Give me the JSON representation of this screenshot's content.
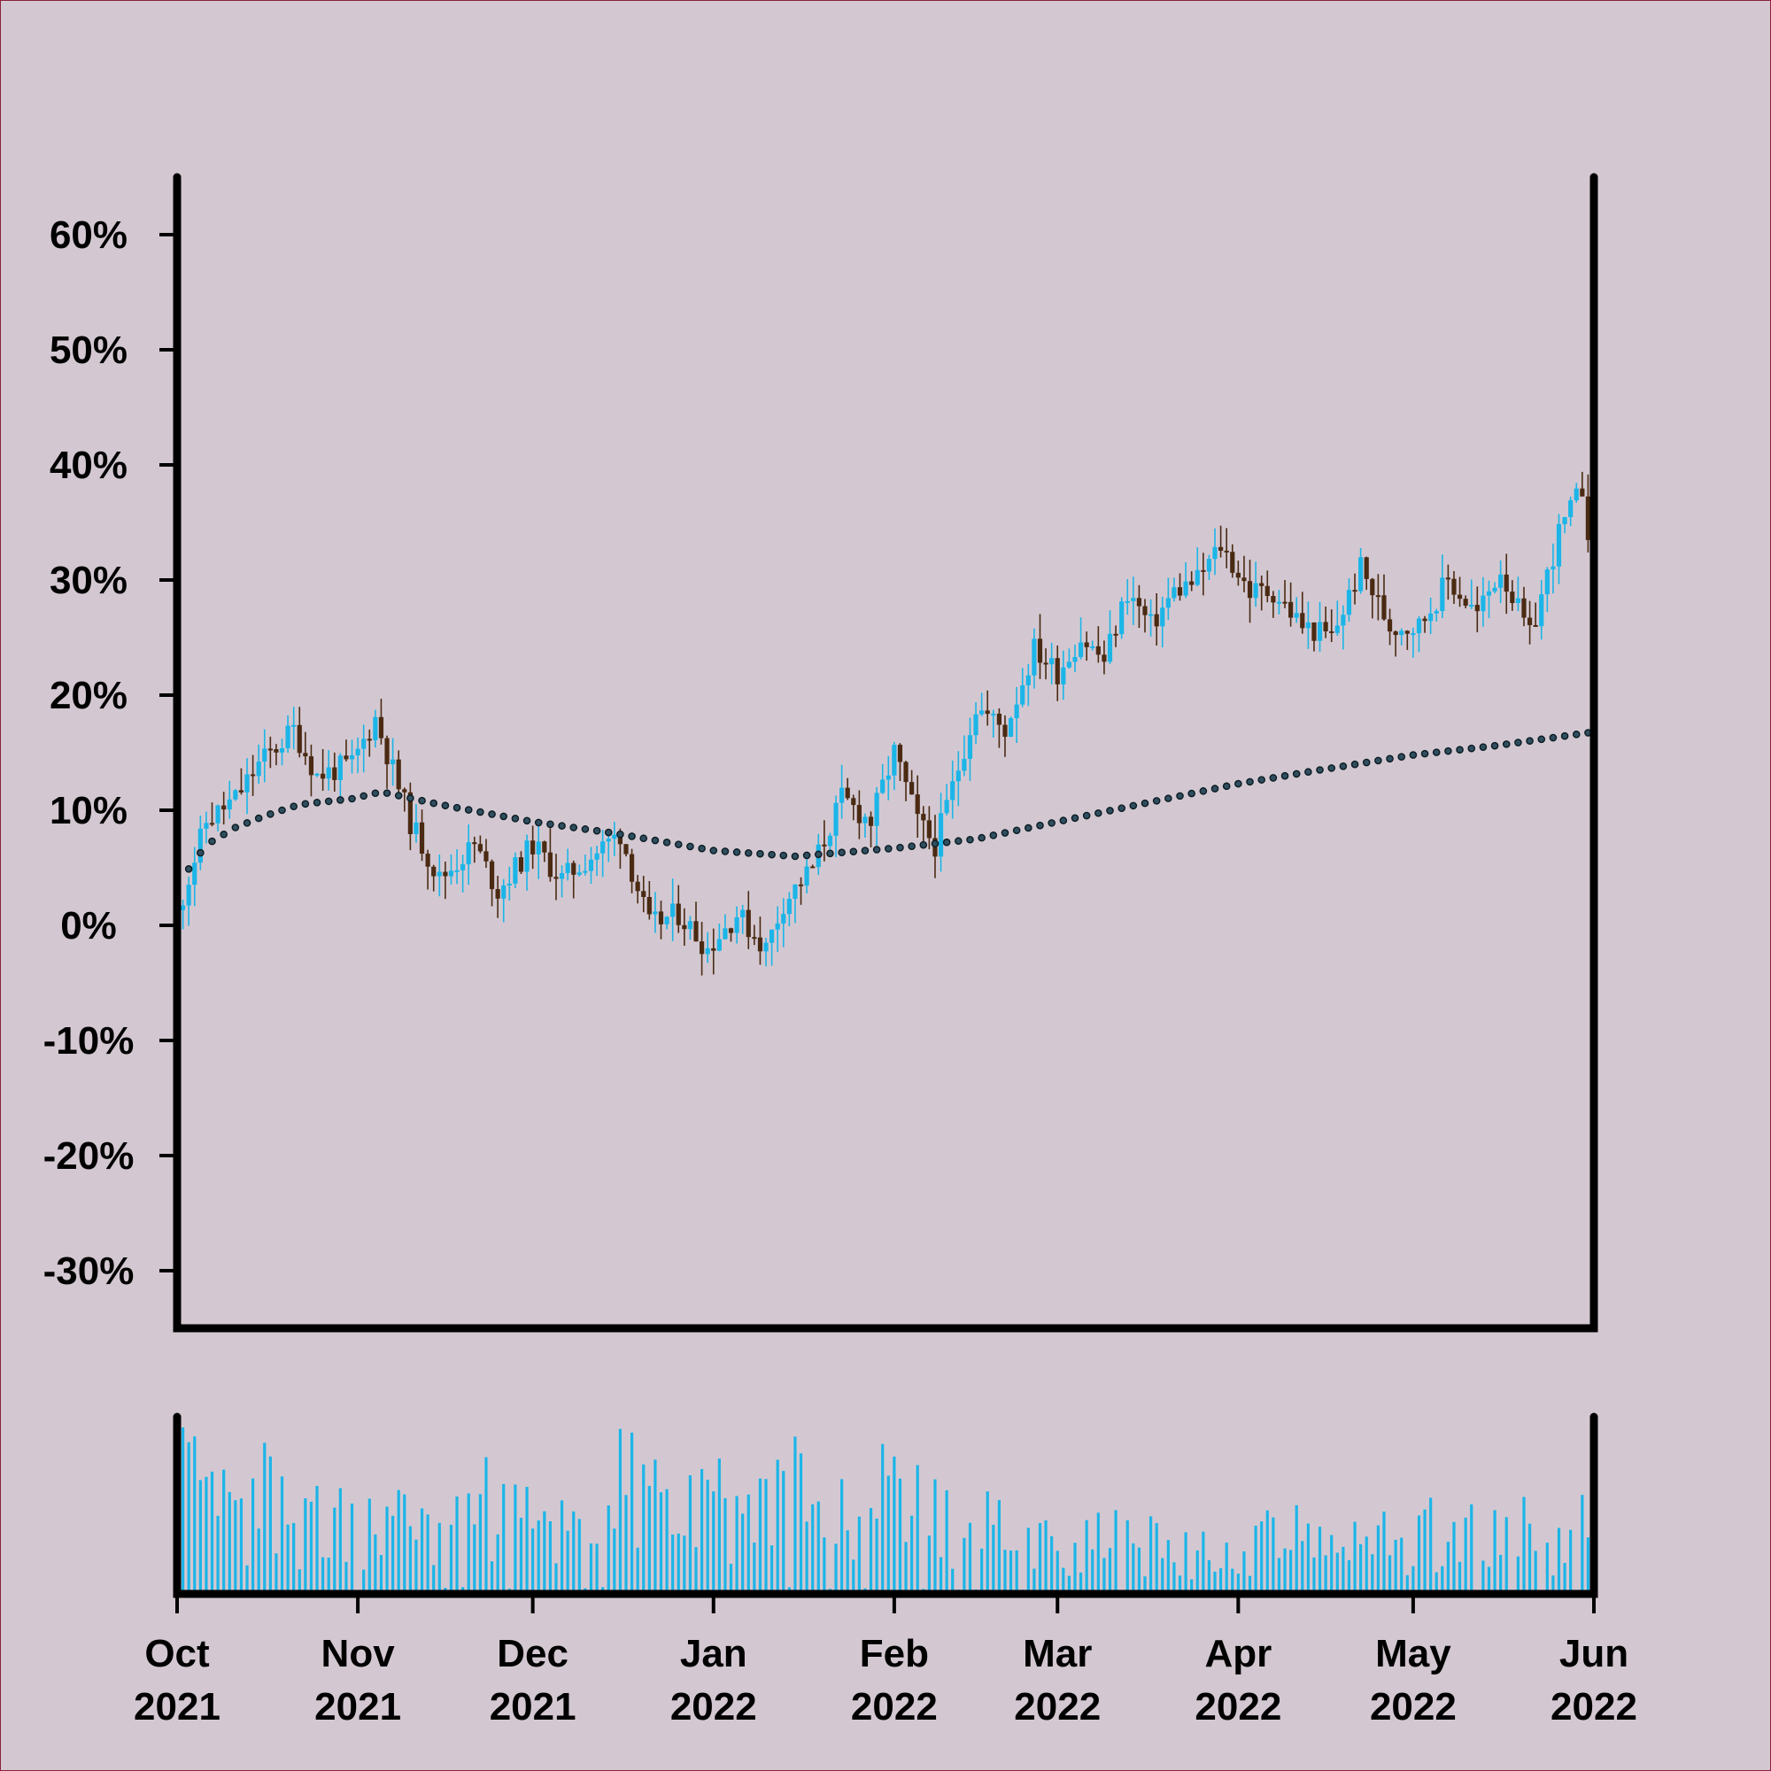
{
  "chart_data": {
    "type": "candlestick",
    "title": "",
    "xlabel": "",
    "ylabel": "",
    "y_axis": {
      "ylim": [
        -35,
        65
      ],
      "ticks": [
        60,
        50,
        40,
        30,
        20,
        10,
        0,
        -10,
        -20,
        -30
      ],
      "tick_labels": [
        "60%",
        "50%",
        "40%",
        "30%",
        "20%",
        "10%",
        "0%",
        "-10%",
        "-20%",
        "-30%"
      ]
    },
    "x_axis": {
      "range": [
        "2021-10-01",
        "2022-06-01"
      ],
      "ticks": [
        {
          "date": "2021-10-01",
          "month": "Oct",
          "year": "2021"
        },
        {
          "date": "2021-11-01",
          "month": "Nov",
          "year": "2021"
        },
        {
          "date": "2021-12-01",
          "month": "Dec",
          "year": "2021"
        },
        {
          "date": "2022-01-01",
          "month": "Jan",
          "year": "2022"
        },
        {
          "date": "2022-02-01",
          "month": "Feb",
          "year": "2022"
        },
        {
          "date": "2022-03-01",
          "month": "Mar",
          "year": "2022"
        },
        {
          "date": "2022-04-01",
          "month": "Apr",
          "year": "2022"
        },
        {
          "date": "2022-05-01",
          "month": "May",
          "year": "2022"
        },
        {
          "date": "2022-06-01",
          "month": "Jun",
          "year": "2022"
        }
      ]
    },
    "close_series": [
      [
        "2021-10-01",
        1
      ],
      [
        "2021-10-06",
        9
      ],
      [
        "2021-10-11",
        11
      ],
      [
        "2021-10-15",
        14
      ],
      [
        "2021-10-21",
        17
      ],
      [
        "2021-10-25",
        13
      ],
      [
        "2021-10-31",
        14
      ],
      [
        "2021-11-04",
        18
      ],
      [
        "2021-11-10",
        9
      ],
      [
        "2021-11-15",
        4
      ],
      [
        "2021-11-21",
        7
      ],
      [
        "2021-11-25",
        3
      ],
      [
        "2021-12-01",
        7
      ],
      [
        "2021-12-06",
        4
      ],
      [
        "2021-12-11",
        6
      ],
      [
        "2021-12-16",
        8
      ],
      [
        "2021-12-21",
        0
      ],
      [
        "2021-12-26",
        1
      ],
      [
        "2021-12-31",
        -2
      ],
      [
        "2022-01-05",
        1
      ],
      [
        "2022-01-10",
        -2
      ],
      [
        "2022-01-13",
        2
      ],
      [
        "2022-01-18",
        5
      ],
      [
        "2022-01-23",
        11
      ],
      [
        "2022-01-28",
        9
      ],
      [
        "2022-02-01",
        15
      ],
      [
        "2022-02-05",
        9
      ],
      [
        "2022-02-08",
        7
      ],
      [
        "2022-02-11",
        12
      ],
      [
        "2022-02-15",
        19
      ],
      [
        "2022-02-20",
        17
      ],
      [
        "2022-02-25",
        24
      ],
      [
        "2022-03-01",
        22
      ],
      [
        "2022-03-05",
        25
      ],
      [
        "2022-03-09",
        23
      ],
      [
        "2022-03-13",
        29
      ],
      [
        "2022-03-17",
        26
      ],
      [
        "2022-03-21",
        29
      ],
      [
        "2022-03-25",
        30
      ],
      [
        "2022-03-29",
        33
      ],
      [
        "2022-04-03",
        29
      ],
      [
        "2022-04-07",
        29
      ],
      [
        "2022-04-12",
        26
      ],
      [
        "2022-04-17",
        25
      ],
      [
        "2022-04-22",
        31
      ],
      [
        "2022-04-27",
        26
      ],
      [
        "2022-05-02",
        26
      ],
      [
        "2022-05-07",
        30
      ],
      [
        "2022-05-12",
        27
      ],
      [
        "2022-05-16",
        31
      ],
      [
        "2022-05-21",
        25
      ],
      [
        "2022-05-26",
        34
      ],
      [
        "2022-05-30",
        38
      ],
      [
        "2022-06-01",
        31
      ]
    ],
    "moving_average": [
      [
        "2021-10-01",
        3.5
      ],
      [
        "2021-10-06",
        7
      ],
      [
        "2021-10-11",
        8.5
      ],
      [
        "2021-10-16",
        9.5
      ],
      [
        "2021-10-22",
        10.5
      ],
      [
        "2021-10-31",
        11
      ],
      [
        "2021-11-05",
        11.6
      ],
      [
        "2021-11-15",
        10.5
      ],
      [
        "2021-12-01",
        9
      ],
      [
        "2021-12-15",
        8
      ],
      [
        "2022-01-01",
        6.5
      ],
      [
        "2022-01-15",
        6
      ],
      [
        "2022-02-01",
        6.7
      ],
      [
        "2022-02-15",
        7.5
      ],
      [
        "2022-03-01",
        9
      ],
      [
        "2022-03-15",
        10.5
      ],
      [
        "2022-04-01",
        12.3
      ],
      [
        "2022-04-15",
        13.5
      ],
      [
        "2022-05-01",
        14.8
      ],
      [
        "2022-05-15",
        15.6
      ],
      [
        "2022-06-01",
        16.8
      ]
    ],
    "volume_series": [
      [
        "2021-10-01",
        0.92
      ],
      [
        "2021-10-06",
        0.65
      ],
      [
        "2021-10-11",
        0.55
      ],
      [
        "2021-10-16",
        0.75
      ],
      [
        "2021-10-21",
        0.58
      ],
      [
        "2021-10-26",
        0.55
      ],
      [
        "2021-10-31",
        0.45
      ],
      [
        "2021-11-05",
        0.62
      ],
      [
        "2021-11-10",
        0.58
      ],
      [
        "2021-11-15",
        0.7
      ],
      [
        "2021-11-20",
        0.85
      ],
      [
        "2021-11-25",
        0.68
      ],
      [
        "2021-11-30",
        0.55
      ],
      [
        "2021-12-05",
        0.55
      ],
      [
        "2021-12-10",
        0.68
      ],
      [
        "2021-12-15",
        0.9
      ],
      [
        "2021-12-20",
        0.78
      ],
      [
        "2021-12-25",
        0.72
      ],
      [
        "2021-12-30",
        0.62
      ],
      [
        "2022-01-04",
        0.72
      ],
      [
        "2022-01-09",
        0.7
      ],
      [
        "2022-01-14",
        0.8
      ],
      [
        "2022-01-19",
        0.62
      ],
      [
        "2022-01-24",
        0.58
      ],
      [
        "2022-01-29",
        0.72
      ],
      [
        "2022-02-03",
        0.65
      ],
      [
        "2022-02-08",
        0.55
      ],
      [
        "2022-02-13",
        0.5
      ],
      [
        "2022-02-18",
        0.55
      ],
      [
        "2022-02-23",
        0.5
      ],
      [
        "2022-02-28",
        0.42
      ],
      [
        "2022-03-05",
        0.4
      ],
      [
        "2022-03-10",
        0.42
      ],
      [
        "2022-03-15",
        0.38
      ],
      [
        "2022-03-20",
        0.35
      ],
      [
        "2022-03-25",
        0.3
      ],
      [
        "2022-03-30",
        0.28
      ],
      [
        "2022-04-04",
        0.35
      ],
      [
        "2022-04-09",
        0.45
      ],
      [
        "2022-04-14",
        0.42
      ],
      [
        "2022-04-19",
        0.4
      ],
      [
        "2022-04-24",
        0.42
      ],
      [
        "2022-04-29",
        0.45
      ],
      [
        "2022-05-04",
        0.45
      ],
      [
        "2022-05-09",
        0.48
      ],
      [
        "2022-05-14",
        0.42
      ],
      [
        "2022-05-19",
        0.5
      ],
      [
        "2022-05-24",
        0.38
      ],
      [
        "2022-05-29",
        0.45
      ],
      [
        "2022-06-01",
        0.55
      ]
    ],
    "grid": false,
    "legend": "none",
    "colors": {
      "background": "#d3c8d1",
      "up_candle": "#1bb5e8",
      "down_candle": "#4a2a12",
      "moving_average_fill": "#2f4f5f",
      "moving_average_stroke": "#0b1a22",
      "volume": "#1bb5e8",
      "axis": "#000000"
    }
  }
}
